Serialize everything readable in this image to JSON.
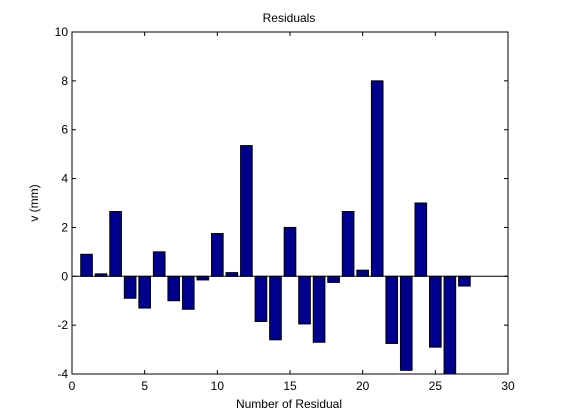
{
  "chart_data": {
    "type": "bar",
    "title": "Residuals",
    "xlabel": "Number of Residual",
    "ylabel": "v  (mm)",
    "xlim": [
      0,
      30
    ],
    "ylim": [
      -4,
      10
    ],
    "xticks": [
      0,
      5,
      10,
      15,
      20,
      25,
      30
    ],
    "yticks": [
      -4,
      -2,
      0,
      2,
      4,
      6,
      8,
      10
    ],
    "grid": false,
    "legend": "none",
    "bar_color": "#00008f",
    "x": [
      1,
      2,
      3,
      4,
      5,
      6,
      7,
      8,
      9,
      10,
      11,
      12,
      13,
      14,
      15,
      16,
      17,
      18,
      19,
      20,
      21,
      22,
      23,
      24,
      25,
      26,
      27
    ],
    "values": [
      0.9,
      0.1,
      2.65,
      -0.9,
      -1.3,
      1.0,
      -1.0,
      -1.35,
      -0.15,
      1.75,
      0.15,
      5.35,
      -1.85,
      -2.6,
      2.0,
      -1.95,
      -2.7,
      -0.25,
      2.65,
      0.25,
      8.0,
      -2.75,
      -3.85,
      3.0,
      -2.9,
      -4.0,
      -0.4
    ]
  }
}
